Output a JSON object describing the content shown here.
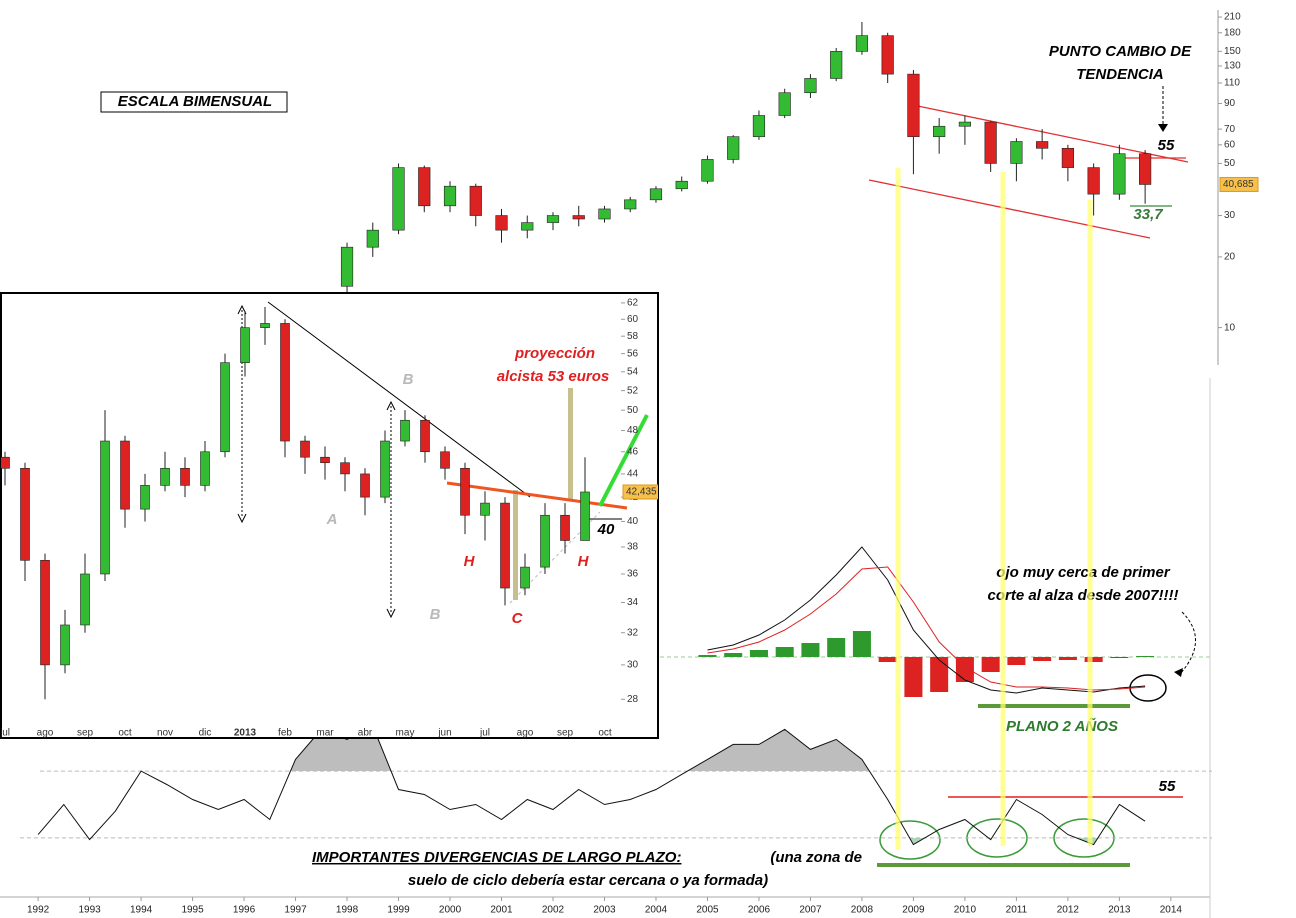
{
  "chart_data": [
    {
      "type": "candlestick",
      "log_scale": true,
      "xlim": [
        1991.26,
        2014.76
      ],
      "ylim": [
        7,
        225
      ],
      "yticks": [
        210,
        180,
        150,
        130,
        110,
        90,
        70,
        60,
        50,
        30,
        20,
        10
      ],
      "x": [
        1998.0,
        1998.5,
        1999.0,
        1999.5,
        2000.0,
        2000.5,
        2001.0,
        2001.5,
        2002.0,
        2002.5,
        2003.0,
        2003.5,
        2004.0,
        2004.5,
        2005.0,
        2005.5,
        2006.0,
        2006.5,
        2007.0,
        2007.5,
        2008.0,
        2008.5,
        2009.0,
        2009.5,
        2010.0,
        2010.5,
        2011.0,
        2011.5,
        2012.0,
        2012.5,
        2013.0,
        2013.5
      ],
      "open": [
        15,
        22,
        26,
        48,
        33,
        40,
        30,
        26,
        28,
        30,
        29,
        32,
        35,
        39,
        42,
        52,
        65,
        80,
        100,
        115,
        150,
        175,
        120,
        65,
        72,
        75,
        50,
        62,
        58,
        48,
        37,
        55
      ],
      "high": [
        23,
        28,
        50,
        49,
        42,
        41,
        32,
        30,
        31,
        33,
        33,
        36,
        40,
        44,
        54,
        66,
        84,
        104,
        120,
        155,
        200,
        180,
        125,
        78,
        80,
        76,
        64,
        70,
        60,
        50,
        60,
        57
      ],
      "low": [
        14,
        20,
        25,
        31,
        31,
        27,
        23,
        24,
        26,
        27,
        28,
        31,
        34,
        38,
        41,
        50,
        63,
        78,
        95,
        112,
        145,
        110,
        45,
        55,
        60,
        46,
        42,
        52,
        42,
        30,
        35,
        33.7
      ],
      "close": [
        22,
        26,
        48,
        33,
        40,
        30,
        26,
        28,
        30,
        29,
        32,
        35,
        39,
        42,
        52,
        65,
        80,
        100,
        115,
        150,
        175,
        120,
        65,
        72,
        75,
        50,
        62,
        58,
        48,
        37,
        55,
        40.685
      ],
      "close_label": "40,685",
      "up_color": "#33bb33",
      "down_color": "#dd2222",
      "annotations": [
        "ESCALA BIMENSUAL",
        "PUNTO CAMBIO DE",
        "TENDENCIA",
        "55",
        "33,7"
      ]
    },
    {
      "type": "macd",
      "xlim": [
        1991.26,
        2014.76
      ],
      "ylim": [
        -60,
        120
      ],
      "x": [
        2005.0,
        2005.5,
        2006.0,
        2006.5,
        2007.0,
        2007.5,
        2008.0,
        2008.5,
        2009.0,
        2009.5,
        2010.0,
        2010.5,
        2011.0,
        2011.5,
        2012.0,
        2012.5,
        2013.0,
        2013.5
      ],
      "series": [
        {
          "kind": "bar",
          "color": "#2e9a2e",
          "negative_color": "#dd2222",
          "values": [
            2,
            4,
            7,
            10,
            14,
            19,
            26,
            -5,
            -40,
            -35,
            -25,
            -15,
            -8,
            -4,
            -3,
            -5,
            -1,
            1
          ]
        },
        {
          "kind": "line",
          "color": "#111111",
          "values": [
            7,
            12,
            22,
            37,
            57,
            82,
            110,
            77,
            27,
            -3,
            -23,
            -33,
            -36,
            -31,
            -33,
            -35,
            -31,
            -29
          ]
        },
        {
          "kind": "line",
          "color": "#dd2222",
          "values": [
            4,
            8,
            15,
            27,
            43,
            63,
            88,
            90,
            55,
            15,
            -10,
            -25,
            -30,
            -30,
            -31,
            -33,
            -32,
            -30
          ]
        }
      ],
      "annotations": [
        "ojo muy cerca de primer",
        "corte al alza desde 2007!!!!",
        "PLANO 2 AÑOS"
      ]
    },
    {
      "type": "line",
      "xlim": [
        1991.26,
        2014.76
      ],
      "ylim": [
        0,
        100
      ],
      "upper_level": 70,
      "lower_level": 30,
      "upper_fill": "#bdbdbd",
      "lower_fill": "#a8d8b8",
      "color": "#111111",
      "x": [
        1992.0,
        1992.5,
        1993.0,
        1993.5,
        1994.0,
        1994.5,
        1995.0,
        1995.5,
        1996.0,
        1996.5,
        1997.0,
        1997.5,
        1998.0,
        1998.5,
        1999.0,
        1999.5,
        2000.0,
        2000.5,
        2001.0,
        2001.5,
        2002.0,
        2002.5,
        2003.0,
        2003.5,
        2004.0,
        2004.5,
        2005.0,
        2005.5,
        2006.0,
        2006.5,
        2007.0,
        2007.5,
        2008.0,
        2008.5,
        2009.0,
        2009.5,
        2010.0,
        2010.5,
        2011.0,
        2011.5,
        2012.0,
        2012.5,
        2013.0,
        2013.5
      ],
      "values": [
        32,
        50,
        29,
        46,
        70,
        62,
        53,
        47,
        53,
        41,
        77,
        95,
        89,
        97,
        59,
        56,
        47,
        50,
        41,
        53,
        47,
        59,
        50,
        53,
        59,
        68,
        77,
        86,
        86,
        95,
        83,
        89,
        77,
        53,
        26,
        35,
        41,
        29,
        53,
        44,
        32,
        26,
        50,
        40
      ],
      "xticks": [
        1992,
        1993,
        1994,
        1995,
        1996,
        1997,
        1998,
        1999,
        2000,
        2001,
        2002,
        2003,
        2004,
        2005,
        2006,
        2007,
        2008,
        2009,
        2010,
        2011,
        2012,
        2013,
        2014
      ],
      "annotations": [
        "55",
        "IMPORTANTES DIVERGENCIAS DE LARGO PLAZO:",
        "(una zona de",
        "suelo de ciclo debería estar cercana o ya formada)"
      ]
    },
    {
      "type": "candlestick",
      "log_scale": true,
      "ylim": [
        26.7,
        63.5
      ],
      "yticks": [
        28,
        30,
        32,
        34,
        36,
        38,
        40,
        42,
        44,
        46,
        48,
        50,
        52,
        54,
        56,
        58,
        60,
        62
      ],
      "categories": [
        "jul",
        null,
        "ago",
        null,
        "sep",
        null,
        "oct",
        null,
        "nov",
        null,
        "dic",
        null,
        "2013",
        null,
        "feb",
        null,
        "mar",
        null,
        "abr",
        null,
        "may",
        null,
        "jun",
        null,
        "jul",
        null,
        "ago",
        null,
        "sep",
        null,
        "oct"
      ],
      "open": [
        45.5,
        44.5,
        37,
        30,
        32.5,
        36,
        47,
        41,
        43,
        44.5,
        43,
        46,
        55,
        59,
        59.5,
        47,
        45.5,
        45,
        44,
        42,
        47,
        49,
        46,
        44.5,
        40.5,
        41.5,
        35,
        36.5,
        40.5,
        38.5,
        null
      ],
      "high": [
        46,
        45,
        37.5,
        33.5,
        37.5,
        50,
        47.5,
        44,
        46,
        45.5,
        47,
        56,
        61,
        61.5,
        60,
        47.5,
        46.5,
        45.5,
        44.5,
        48,
        50,
        49.5,
        46.5,
        45,
        42.5,
        42,
        37.5,
        41.5,
        41.5,
        45.5,
        null
      ],
      "low": [
        43,
        35.5,
        28,
        29.5,
        32,
        35.5,
        39.5,
        40,
        42.5,
        42,
        42.5,
        45.5,
        53.5,
        57,
        45.5,
        44,
        43.5,
        42.5,
        40.5,
        41.5,
        46.5,
        45,
        43.5,
        39,
        38.5,
        33.8,
        34.5,
        36,
        37.5,
        38.5,
        null
      ],
      "close": [
        44.5,
        37,
        30,
        32.5,
        36,
        47,
        41,
        43,
        44.5,
        43,
        46,
        55,
        59,
        59.5,
        47,
        45.5,
        45,
        44,
        42,
        47,
        49,
        46,
        44.5,
        40.5,
        41.5,
        35,
        36.5,
        40.5,
        38.5,
        42.435,
        null
      ],
      "close_label": "42,435",
      "up_color": "#33bb33",
      "down_color": "#dd2222",
      "annotations": [
        "proyección",
        "alcista 53 euros",
        "B",
        "A",
        "B",
        "C",
        "H",
        "H",
        "40"
      ]
    }
  ]
}
